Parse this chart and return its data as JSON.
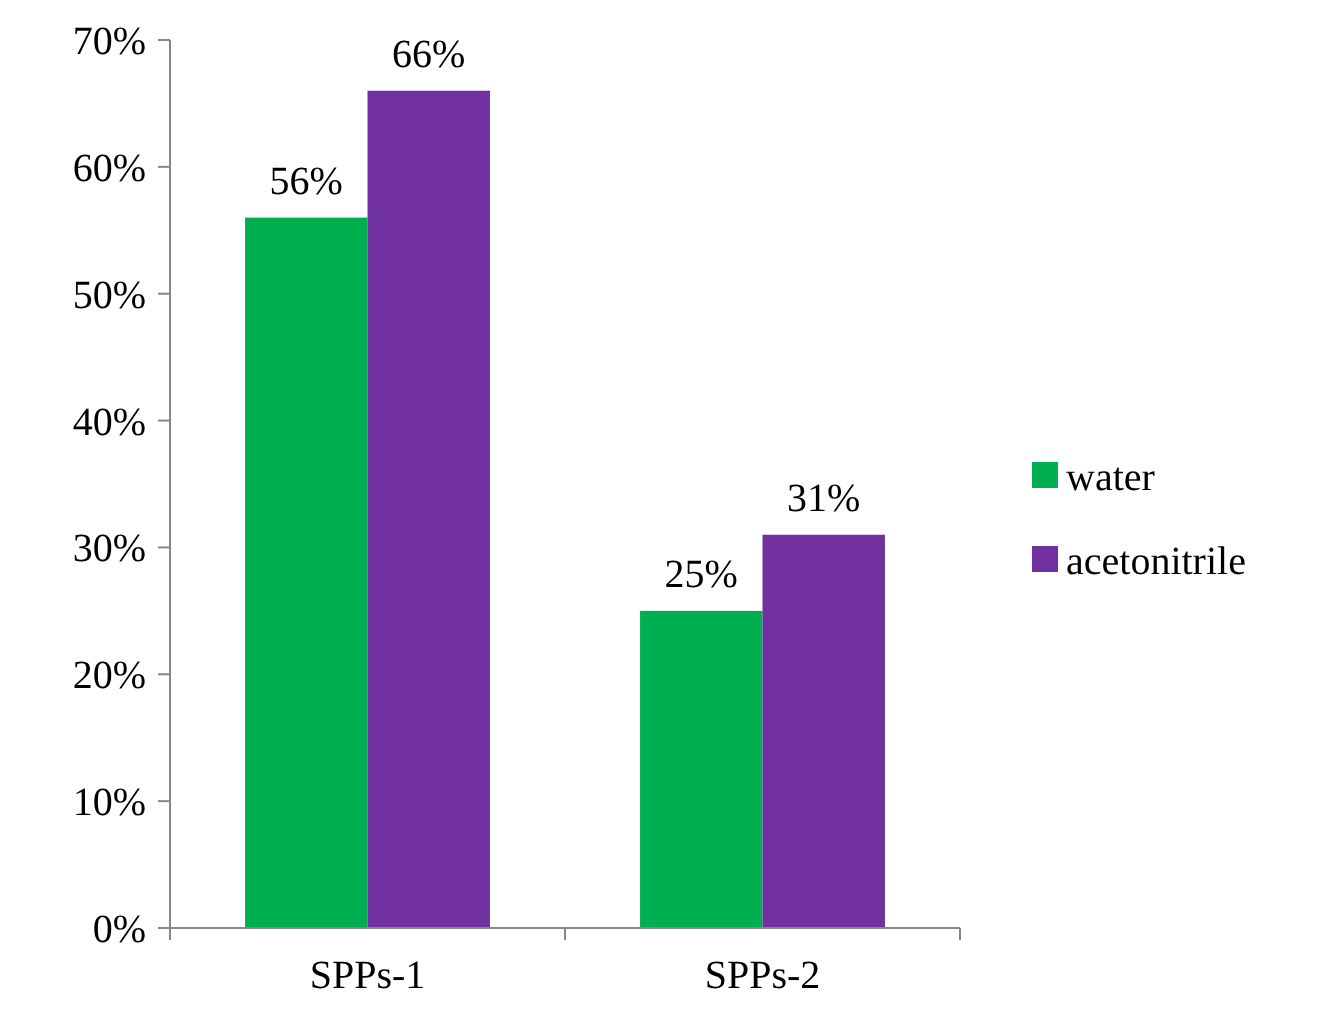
{
  "chart_data": {
    "type": "bar",
    "categories": [
      "SPPs-1",
      "SPPs-2"
    ],
    "series": [
      {
        "name": "water",
        "color": "#00b050",
        "values": [
          56,
          25
        ],
        "value_labels": [
          "56%",
          "25%"
        ]
      },
      {
        "name": "acetonitrile",
        "color": "#7030a0",
        "values": [
          66,
          31
        ],
        "value_labels": [
          "66%",
          "31%"
        ]
      }
    ],
    "ylim": [
      0,
      70
    ],
    "yticks": [
      {
        "value": 0,
        "label": "0%"
      },
      {
        "value": 10,
        "label": "10%"
      },
      {
        "value": 20,
        "label": "20%"
      },
      {
        "value": 30,
        "label": "30%"
      },
      {
        "value": 40,
        "label": "40%"
      },
      {
        "value": 50,
        "label": "50%"
      },
      {
        "value": 60,
        "label": "60%"
      },
      {
        "value": 70,
        "label": "70%"
      }
    ],
    "grid": false,
    "legend": "right"
  }
}
